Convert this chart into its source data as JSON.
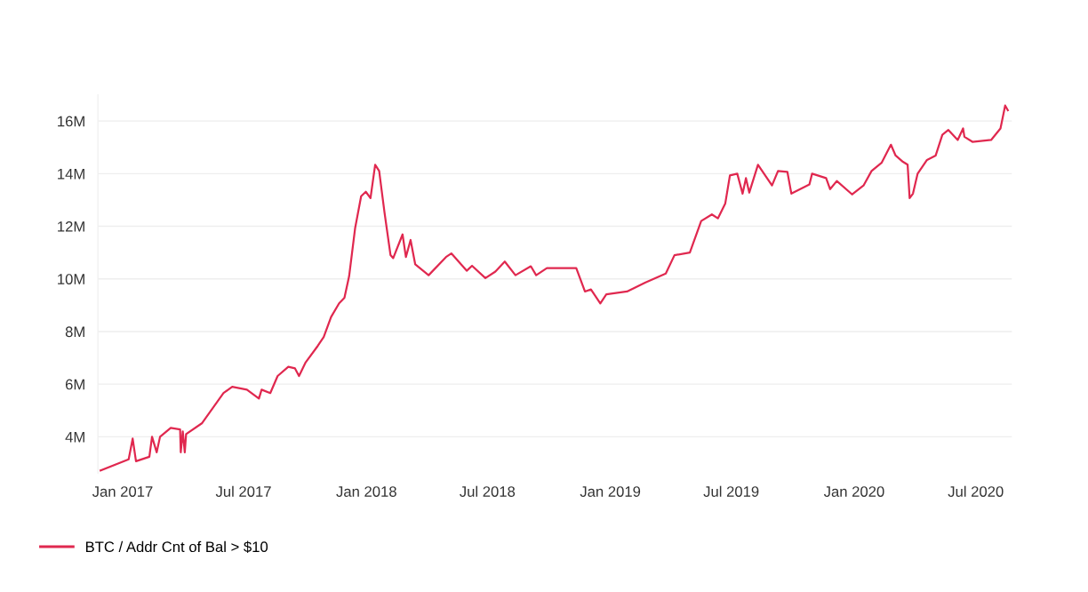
{
  "chart_data": {
    "type": "line",
    "x": [
      "2016-11-29",
      "2017-01-10",
      "2017-01-16",
      "2017-01-21",
      "2017-02-10",
      "2017-02-14",
      "2017-02-21",
      "2017-02-26",
      "2017-03-14",
      "2017-03-28",
      "2017-03-29",
      "2017-04-01",
      "2017-04-04",
      "2017-04-06",
      "2017-04-30",
      "2017-06-01",
      "2017-06-14",
      "2017-07-06",
      "2017-07-24",
      "2017-07-28",
      "2017-08-10",
      "2017-08-21",
      "2017-09-06",
      "2017-09-16",
      "2017-09-22",
      "2017-10-02",
      "2017-10-20",
      "2017-10-29",
      "2017-11-09",
      "2017-11-21",
      "2017-11-29",
      "2017-12-06",
      "2017-12-15",
      "2017-12-24",
      "2017-12-31",
      "2018-01-07",
      "2018-01-14",
      "2018-01-20",
      "2018-01-24",
      "2018-01-28",
      "2018-02-06",
      "2018-02-10",
      "2018-02-24",
      "2018-03-01",
      "2018-03-08",
      "2018-03-15",
      "2018-04-04",
      "2018-04-30",
      "2018-05-08",
      "2018-05-31",
      "2018-06-08",
      "2018-06-28",
      "2018-07-13",
      "2018-07-27",
      "2018-08-12",
      "2018-09-04",
      "2018-09-12",
      "2018-09-28",
      "2018-11-11",
      "2018-11-24",
      "2018-12-03",
      "2018-12-17",
      "2018-12-26",
      "2019-01-26",
      "2019-02-22",
      "2019-03-25",
      "2019-04-07",
      "2019-04-30",
      "2019-05-17",
      "2019-06-02",
      "2019-06-11",
      "2019-06-22",
      "2019-06-29",
      "2019-07-10",
      "2019-07-18",
      "2019-07-23",
      "2019-07-28",
      "2019-08-10",
      "2019-08-31",
      "2019-09-09",
      "2019-09-23",
      "2019-09-29",
      "2019-10-26",
      "2019-10-30",
      "2019-11-20",
      "2019-11-26",
      "2019-12-06",
      "2019-12-29",
      "2020-01-15",
      "2020-01-27",
      "2020-02-11",
      "2020-02-25",
      "2020-03-03",
      "2020-03-14",
      "2020-03-21",
      "2020-03-24",
      "2020-03-29",
      "2020-04-05",
      "2020-04-19",
      "2020-05-02",
      "2020-05-12",
      "2020-05-21",
      "2020-06-04",
      "2020-06-12",
      "2020-06-14",
      "2020-06-26",
      "2020-07-24",
      "2020-08-07",
      "2020-08-14",
      "2020-08-18"
    ],
    "series": [
      {
        "name": "BTC / Addr Cnt of Bal > $10",
        "color": "#e0284f",
        "values": [
          2.72,
          3.14,
          3.93,
          3.07,
          3.24,
          4.0,
          3.41,
          4.0,
          4.34,
          4.28,
          3.41,
          4.2,
          3.41,
          4.1,
          4.52,
          5.66,
          5.9,
          5.79,
          5.45,
          5.79,
          5.66,
          6.31,
          6.66,
          6.6,
          6.31,
          6.83,
          7.45,
          7.79,
          8.55,
          9.07,
          9.28,
          10.1,
          11.93,
          13.14,
          13.31,
          13.07,
          14.34,
          14.1,
          13.31,
          12.52,
          10.9,
          10.79,
          11.69,
          10.83,
          11.48,
          10.55,
          10.14,
          10.83,
          10.97,
          10.31,
          10.5,
          10.03,
          10.28,
          10.66,
          10.14,
          10.48,
          10.14,
          10.41,
          10.41,
          9.52,
          9.6,
          9.07,
          9.41,
          9.52,
          9.86,
          10.2,
          10.9,
          11.0,
          12.2,
          12.45,
          12.3,
          12.86,
          13.93,
          14.0,
          13.24,
          13.83,
          13.28,
          14.34,
          13.55,
          14.1,
          14.07,
          13.24,
          13.59,
          14.0,
          13.83,
          13.41,
          13.72,
          13.21,
          13.55,
          14.1,
          14.41,
          15.1,
          14.69,
          14.45,
          14.34,
          13.07,
          13.24,
          14.0,
          14.52,
          14.69,
          15.48,
          15.66,
          15.28,
          15.72,
          15.4,
          15.21,
          15.28,
          15.72,
          16.59,
          16.41
        ]
      }
    ],
    "xlim": [
      "2016-11-25",
      "2020-08-24"
    ],
    "xticks": [
      {
        "value": "2017-01-01",
        "label": "Jan 2017"
      },
      {
        "value": "2017-07-01",
        "label": "Jul 2017"
      },
      {
        "value": "2018-01-01",
        "label": "Jan 2018"
      },
      {
        "value": "2018-07-01",
        "label": "Jul 2018"
      },
      {
        "value": "2019-01-01",
        "label": "Jan 2019"
      },
      {
        "value": "2019-07-01",
        "label": "Jul 2019"
      },
      {
        "value": "2020-01-01",
        "label": "Jan 2020"
      },
      {
        "value": "2020-07-01",
        "label": "Jul 2020"
      }
    ],
    "ylim": [
      2.6,
      17.0
    ],
    "yticks": [
      {
        "value": 4,
        "label": "4M"
      },
      {
        "value": 6,
        "label": "6M"
      },
      {
        "value": 8,
        "label": "8M"
      },
      {
        "value": 10,
        "label": "10M"
      },
      {
        "value": 12,
        "label": "12M"
      },
      {
        "value": 14,
        "label": "14M"
      },
      {
        "value": 16,
        "label": "16M"
      }
    ],
    "grid": "y",
    "legend": "bottom left",
    "marker": "none",
    "line_style": "solid"
  }
}
